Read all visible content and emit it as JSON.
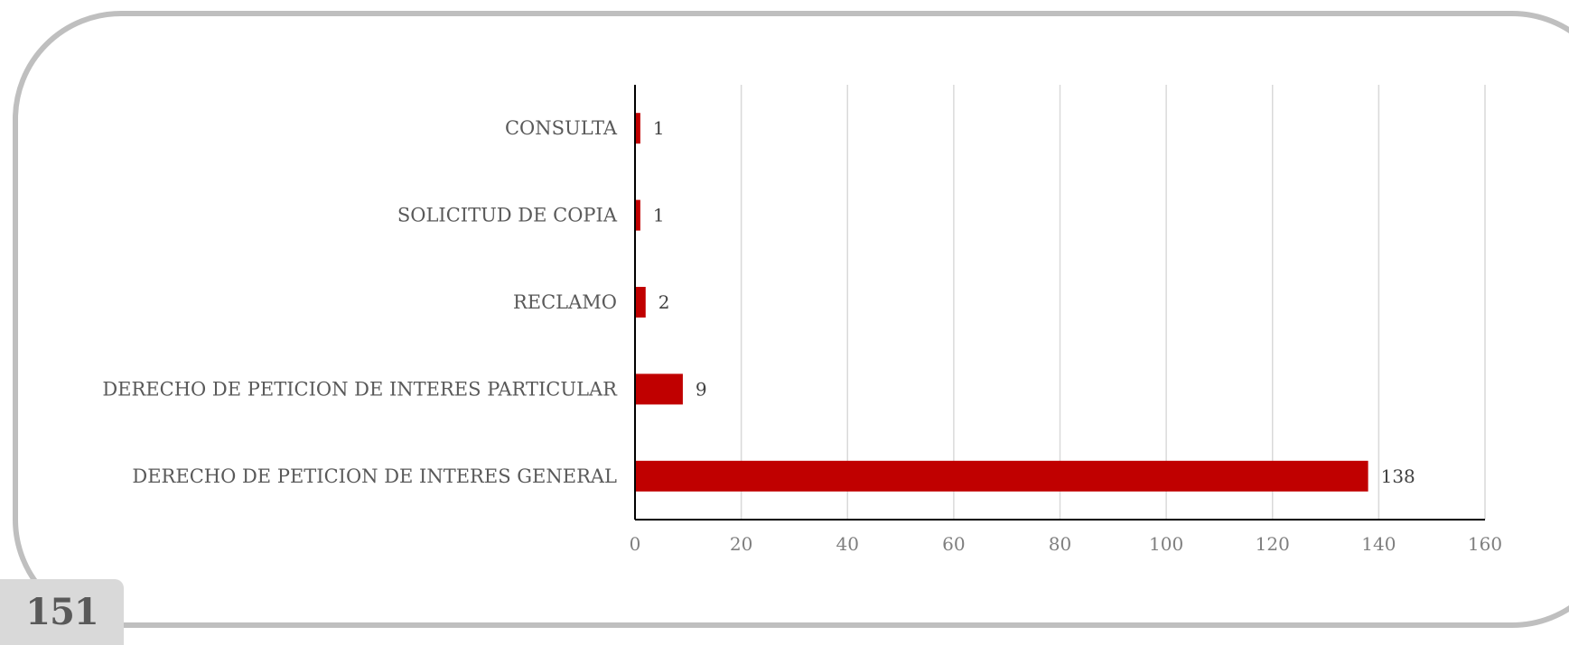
{
  "page": {
    "number": "151"
  },
  "chart_data": {
    "type": "bar",
    "orientation": "horizontal",
    "categories": [
      "CONSULTA",
      "SOLICITUD DE COPIA",
      "RECLAMO",
      "DERECHO DE PETICION DE INTERES PARTICULAR",
      "DERECHO DE PETICION DE INTERES GENERAL"
    ],
    "values": [
      1,
      1,
      2,
      9,
      138
    ],
    "data_labels": [
      "1",
      "1",
      "2",
      "9",
      "138"
    ],
    "xlim": [
      0,
      160
    ],
    "xticks": [
      0,
      20,
      40,
      60,
      80,
      100,
      120,
      140,
      160
    ],
    "xtick_labels": [
      "0",
      "20",
      "40",
      "60",
      "80",
      "100",
      "120",
      "140",
      "160"
    ],
    "grid": "vertical",
    "legend": "none",
    "colors": {
      "bar": "#c00000",
      "grid": "#d9d9d9",
      "axis": "#000000"
    }
  }
}
